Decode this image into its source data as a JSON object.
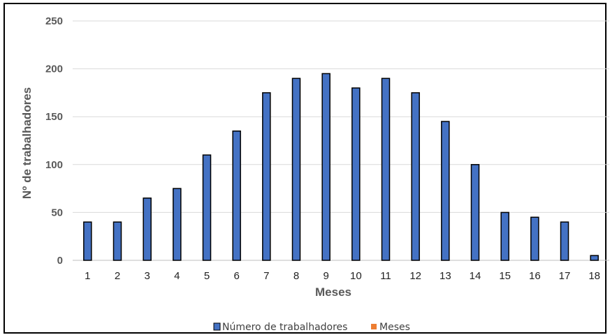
{
  "chart_data": {
    "type": "bar",
    "categories": [
      "1",
      "2",
      "3",
      "4",
      "5",
      "6",
      "7",
      "8",
      "9",
      "10",
      "11",
      "12",
      "13",
      "14",
      "15",
      "16",
      "17",
      "18"
    ],
    "series": [
      {
        "name": "Número de trabalhadores",
        "values": [
          40,
          40,
          65,
          75,
          110,
          135,
          175,
          190,
          195,
          180,
          190,
          175,
          145,
          100,
          50,
          45,
          40,
          5
        ]
      }
    ],
    "legend": [
      {
        "label": "Número de trabalhadores",
        "color": "#4472c4"
      },
      {
        "label": "Meses",
        "color": "#ed7d31"
      }
    ],
    "xlabel": "Meses",
    "ylabel": "Nº de trabalhadores",
    "ylim": [
      0,
      250
    ],
    "yticks": [
      "0",
      "50",
      "100",
      "150",
      "200",
      "250"
    ],
    "grid": true,
    "legend_position": "bottom",
    "colors": {
      "bar_fill": "#4472c4",
      "bar_stroke": "#000000",
      "grid": "#d9d9d9",
      "meses_swatch": "#ed7d31"
    }
  }
}
